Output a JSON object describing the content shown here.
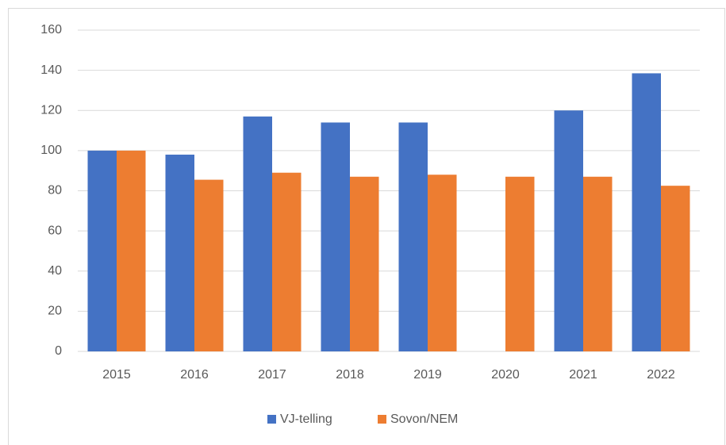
{
  "chart_data": {
    "type": "bar",
    "categories": [
      "2015",
      "2016",
      "2017",
      "2018",
      "2019",
      "2020",
      "2021",
      "2022"
    ],
    "series": [
      {
        "name": "VJ-telling",
        "color": "#4472c4",
        "values": [
          100,
          98,
          117,
          114,
          114,
          null,
          120,
          138.5
        ]
      },
      {
        "name": "Sovon/NEM",
        "color": "#ed7d31",
        "values": [
          100,
          85.5,
          89,
          87,
          88,
          87,
          87,
          82.5
        ]
      }
    ],
    "ylim": [
      0,
      160
    ],
    "yticks": [
      0,
      20,
      40,
      60,
      80,
      100,
      120,
      140,
      160
    ],
    "grid": true,
    "legend": "bottom"
  }
}
